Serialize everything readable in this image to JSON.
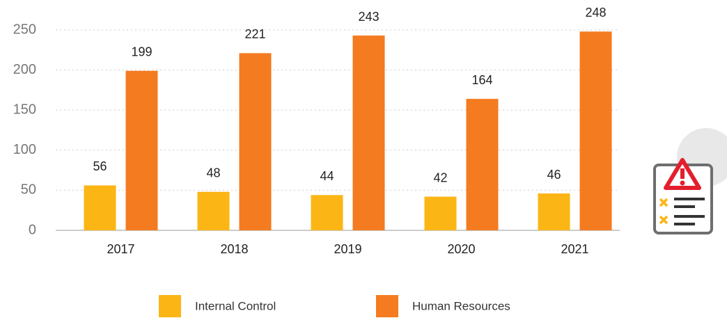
{
  "chart_data": {
    "type": "bar",
    "categories": [
      "2017",
      "2018",
      "2019",
      "2020",
      "2021"
    ],
    "series": [
      {
        "name": "Internal Control",
        "color": "#fbb515",
        "values": [
          56,
          48,
          44,
          42,
          46
        ]
      },
      {
        "name": "Human Resources",
        "color": "#f47b20",
        "values": [
          199,
          221,
          243,
          164,
          248
        ]
      }
    ],
    "ylim": [
      0,
      250
    ],
    "yticks": [
      0,
      50,
      100,
      150,
      200,
      250
    ],
    "grid": true
  }
}
